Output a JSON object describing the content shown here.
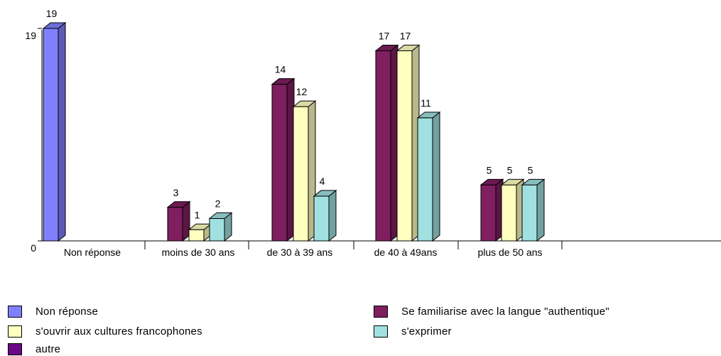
{
  "chart_data": {
    "type": "bar",
    "categories": [
      "Non réponse",
      "moins de 30 ans",
      "de 30 à 39 ans",
      "de 40 à 49ans",
      "plus de 50 ans"
    ],
    "series": [
      {
        "name": "Non réponse",
        "color": "#8080FF",
        "values": [
          19,
          null,
          null,
          null,
          null
        ]
      },
      {
        "name": "Se familiarise avec la langue \"authentique\"",
        "color": "#7F1F5F",
        "values": [
          null,
          3,
          14,
          17,
          5
        ]
      },
      {
        "name": "s'ouvrir aux cultures francophones",
        "color": "#FFFFC0",
        "values": [
          null,
          1,
          12,
          17,
          5
        ]
      },
      {
        "name": "s'exprimer",
        "color": "#A0E0E0",
        "values": [
          null,
          2,
          4,
          11,
          5
        ]
      },
      {
        "name": "autre",
        "color": "#6A0888",
        "values": [
          null,
          null,
          null,
          null,
          null
        ]
      }
    ],
    "yaxis": {
      "ticks": [
        0,
        19
      ],
      "ylim": [
        0,
        19
      ]
    },
    "legend_position": "bottom",
    "three_d": true
  },
  "legend": {
    "left_items": [
      {
        "label": "Non réponse",
        "color": "#8080FF"
      },
      {
        "label": "s'ouvrir aux cultures francophones",
        "color": "#FFFFC0"
      },
      {
        "label": "autre",
        "color": "#6A0888"
      }
    ],
    "right_items": [
      {
        "label": "Se familiarise avec la langue \"authentique\"",
        "color": "#7F1F5F"
      },
      {
        "label": "s'exprimer",
        "color": "#A0E0E0"
      }
    ]
  }
}
